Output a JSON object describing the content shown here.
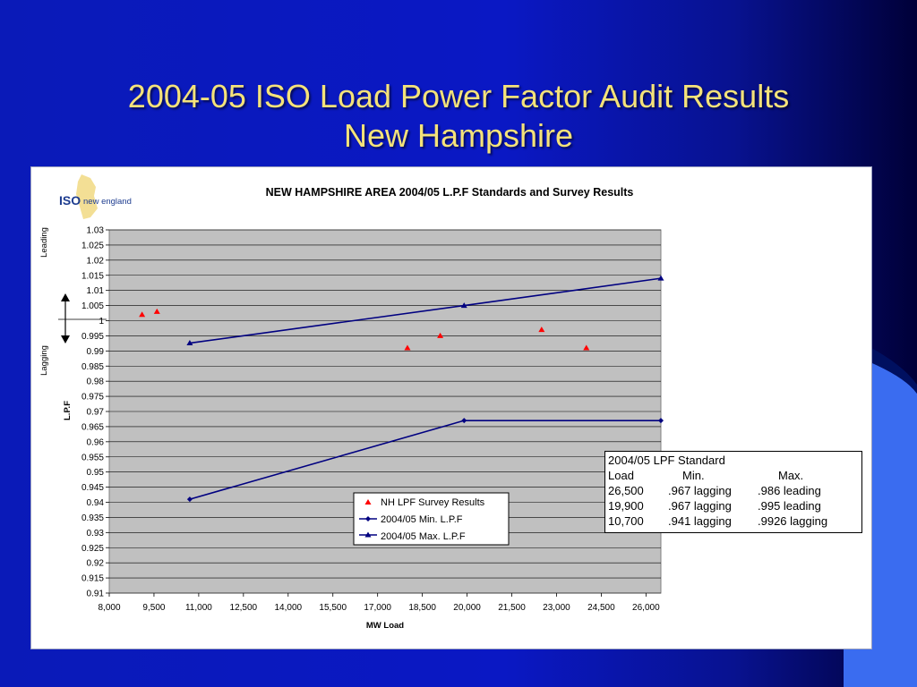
{
  "slide": {
    "title_line1": "2004-05 ISO Load Power Factor Audit Results",
    "title_line2": "New Hampshire"
  },
  "logo": {
    "brand": "ISO",
    "sub": "new england"
  },
  "chart_data": {
    "type": "scatter",
    "title": "NEW HAMPSHIRE AREA 2004/05 L.P.F Standards and Survey Results",
    "xlabel": "MW Load",
    "ylabel": "L.P.F",
    "ylabel_leading": "Leading",
    "ylabel_lagging": "Lagging",
    "xlim": [
      8000,
      26500
    ],
    "ylim": [
      0.91,
      1.03
    ],
    "x_ticks": [
      8000,
      9500,
      11000,
      12500,
      14000,
      15500,
      17000,
      18500,
      20000,
      21500,
      23000,
      24500,
      26000
    ],
    "x_tick_labels": [
      "8,000",
      "9,500",
      "11,000",
      "12,500",
      "14,000",
      "15,500",
      "17,000",
      "18,500",
      "20,000",
      "21,500",
      "23,000",
      "24,500",
      "26,000"
    ],
    "y_ticks": [
      0.91,
      0.915,
      0.92,
      0.925,
      0.93,
      0.935,
      0.94,
      0.945,
      0.95,
      0.955,
      0.96,
      0.965,
      0.97,
      0.975,
      0.98,
      0.985,
      0.99,
      0.995,
      1,
      1.005,
      1.01,
      1.015,
      1.02,
      1.025,
      1.03
    ],
    "y_tick_labels": [
      "0.91",
      "0.915",
      "0.92",
      "0.925",
      "0.93",
      "0.935",
      "0.94",
      "0.945",
      "0.95",
      "0.955",
      "0.96",
      "0.965",
      "0.97",
      "0.975",
      "0.98",
      "0.985",
      "0.99",
      "0.995",
      "1",
      "1.005",
      "1.01",
      "1.015",
      "1.02",
      "1.025",
      "1.03"
    ],
    "grid": true,
    "legend_position": "bottom-center",
    "series": [
      {
        "name": "NH LPF Survey Results",
        "kind": "points",
        "marker": "triangle",
        "color": "#ff0000",
        "points": [
          {
            "x": 9100,
            "y": 1.002
          },
          {
            "x": 9600,
            "y": 1.003
          },
          {
            "x": 18000,
            "y": 0.991
          },
          {
            "x": 19100,
            "y": 0.995
          },
          {
            "x": 22500,
            "y": 0.997
          },
          {
            "x": 24000,
            "y": 0.991
          }
        ]
      },
      {
        "name": "2004/05 Min. L.P.F",
        "kind": "line",
        "marker": "diamond",
        "color": "#000080",
        "points": [
          {
            "x": 10700,
            "y": 0.941
          },
          {
            "x": 19900,
            "y": 0.967
          },
          {
            "x": 26500,
            "y": 0.967
          }
        ]
      },
      {
        "name": "2004/05 Max. L.P.F",
        "kind": "line",
        "marker": "triangle",
        "color": "#000080",
        "points": [
          {
            "x": 10700,
            "y": 0.9926
          },
          {
            "x": 19900,
            "y": 1.005
          },
          {
            "x": 26500,
            "y": 1.014
          }
        ]
      }
    ],
    "plot_background": "#c0c0c0"
  },
  "standard_table": {
    "heading": "2004/05 LPF Standard",
    "headers": {
      "load": "Load",
      "min": "Min.",
      "max": "Max."
    },
    "rows": [
      {
        "load": "26,500",
        "min": ".967 lagging",
        "max": ".986 leading"
      },
      {
        "load": "19,900",
        "min": ".967 lagging",
        "max": ".995 leading"
      },
      {
        "load": "10,700",
        "min": ".941 lagging",
        "max": ".9926 lagging"
      }
    ]
  }
}
